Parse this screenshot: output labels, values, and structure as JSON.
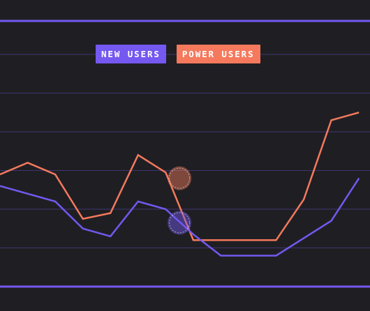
{
  "colors": {
    "background": "#1f1f23",
    "gridline": "#3d3470",
    "border": "#7458f0",
    "new_users": "#7458f0",
    "power_users": "#f5795d"
  },
  "legend": {
    "new_users": "NEW USERS",
    "power_users": "POWER USERS"
  },
  "chart_data": {
    "type": "line",
    "title": "",
    "xlabel": "",
    "ylabel": "",
    "grid": true,
    "legend_placement": "top-center",
    "x": [
      0,
      1,
      2,
      3,
      4,
      5,
      6,
      7,
      8,
      9,
      10,
      11,
      12,
      13
    ],
    "ylim": [
      0,
      7
    ],
    "series": [
      {
        "name": "NEW USERS",
        "values": [
          2.6,
          2.4,
          2.2,
          1.5,
          1.3,
          2.2,
          2.0,
          1.35,
          0.8,
          0.8,
          0.8,
          1.25,
          1.7,
          2.8
        ]
      },
      {
        "name": "POWER USERS",
        "values": [
          2.9,
          3.2,
          2.9,
          1.75,
          1.9,
          3.4,
          2.95,
          1.2,
          1.2,
          1.2,
          1.2,
          2.25,
          4.3,
          4.5
        ]
      }
    ],
    "highlight": {
      "x": 6.5,
      "values": {
        "NEW USERS": 1.65,
        "POWER USERS": 2.8
      }
    }
  }
}
